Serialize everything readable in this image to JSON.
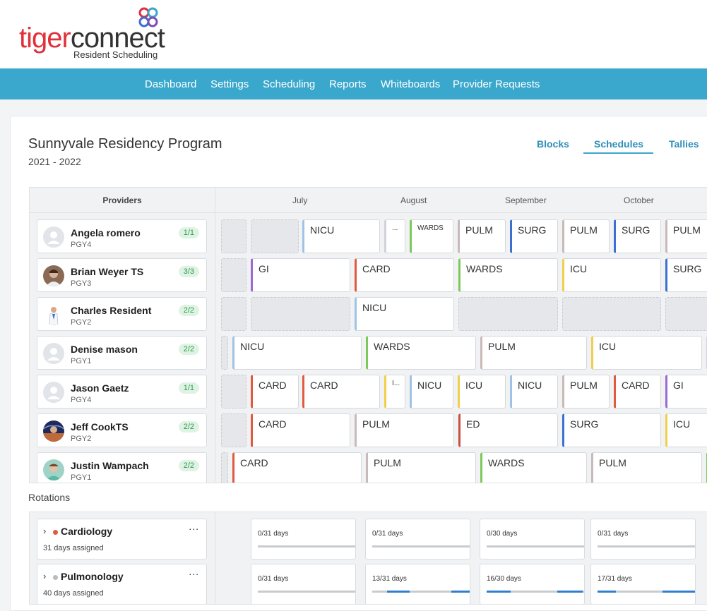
{
  "brand": {
    "word_a": "tiger",
    "word_b": "connect",
    "subtitle": "Resident Scheduling",
    "colors": {
      "accent": "#3aa8cc",
      "logo_red": "#e0313b"
    }
  },
  "nav": {
    "items": [
      "Dashboard",
      "Settings",
      "Scheduling",
      "Reports",
      "Whiteboards",
      "Provider Requests"
    ]
  },
  "program": {
    "title": "Sunnyvale Residency Program",
    "years": "2021 - 2022"
  },
  "view_tabs": {
    "items": [
      "Blocks",
      "Schedules",
      "Tallies"
    ],
    "active": "Schedules"
  },
  "schedule": {
    "providers_header": "Providers",
    "months": [
      "July",
      "August",
      "September",
      "October"
    ],
    "providers": [
      {
        "name": "Angela romero",
        "pgy": "PGY4",
        "badge": "1/1",
        "avatar": "placeholder-person-icon"
      },
      {
        "name": "Brian Weyer TS",
        "pgy": "PGY3",
        "badge": "3/3",
        "avatar": "photo-avatar"
      },
      {
        "name": "Charles Resident",
        "pgy": "PGY2",
        "badge": "2/2",
        "avatar": "doctor-illustration-avatar"
      },
      {
        "name": "Denise mason",
        "pgy": "PGY1",
        "badge": "2/2",
        "avatar": "placeholder-person-icon"
      },
      {
        "name": "Jason Gaetz",
        "pgy": "PGY4",
        "badge": "1/1",
        "avatar": "placeholder-person-icon"
      },
      {
        "name": "Jeff CookTS",
        "pgy": "PGY2",
        "badge": "2/2",
        "avatar": "photo-avatar"
      },
      {
        "name": "Justin Wampach",
        "pgy": "PGY1",
        "badge": "2/2",
        "avatar": "photo-avatar"
      }
    ],
    "blocks": {
      "row0": [
        "NICU",
        "...",
        "WARDS",
        "PULM",
        "SURG",
        "PULM",
        "SURG",
        "PULM"
      ],
      "row1": [
        "GI",
        "CARD",
        "WARDS",
        "ICU",
        "SURG"
      ],
      "row2": [
        "NICU"
      ],
      "row3": [
        "NICU",
        "WARDS",
        "PULM",
        "ICU"
      ],
      "row4": [
        "CARD",
        "CARD",
        "I...",
        "NICU",
        "ICU",
        "NICU",
        "PULM",
        "CARD",
        "GI"
      ],
      "row5": [
        "CARD",
        "PULM",
        "ED",
        "SURG",
        "ICU"
      ],
      "row6": [
        "CARD",
        "PULM",
        "WARDS",
        "PULM"
      ]
    },
    "rotation_colors": {
      "NICU": "#9fc3e4",
      "WARDS": "#7cc95a",
      "PULM": "#c9b9b9",
      "SURG": "#3b6fd4",
      "GI": "#9b6ad3",
      "CARD": "#e05a3f",
      "ICU": "#f0cf4a",
      "ED": "#c9503f",
      "OTHER": "#cfd3d8"
    }
  },
  "rotations": {
    "label": "Rotations",
    "items": [
      {
        "name": "Cardiology",
        "dot_color": "#e05a3f",
        "sub": "31 days assigned",
        "menu": "...",
        "tallies": [
          {
            "text": "0/31 days",
            "fraction": 0
          },
          {
            "text": "0/31 days",
            "fraction": 0
          },
          {
            "text": "0/30 days",
            "fraction": 0
          },
          {
            "text": "0/31 days",
            "fraction": 0
          }
        ]
      },
      {
        "name": "Pulmonology",
        "dot_color": "#b8bcc2",
        "sub": "40 days assigned",
        "menu": "...",
        "tallies": [
          {
            "text": "0/31 days",
            "fraction": 0
          },
          {
            "text": "13/31 days",
            "fraction": 0.42
          },
          {
            "text": "16/30 days",
            "fraction": 0.53
          },
          {
            "text": "17/31 days",
            "fraction": 0.55
          }
        ]
      }
    ]
  }
}
